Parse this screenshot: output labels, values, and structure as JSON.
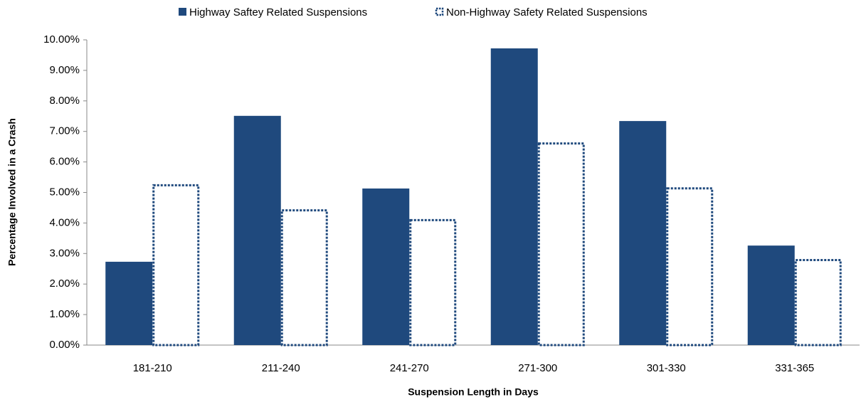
{
  "chart_data": {
    "type": "bar",
    "x_label": "Suspension Length in Days",
    "y_label": "Percentage Involved in a Crash",
    "categories": [
      "181-210",
      "211-240",
      "241-270",
      "271-300",
      "301-330",
      "331-365"
    ],
    "series": [
      {
        "name": "Highway Saftey Related Suspensions",
        "color": "#1f497d",
        "style": "solid",
        "values": [
          2.73,
          7.51,
          5.13,
          9.72,
          7.34,
          3.26
        ]
      },
      {
        "name": "Non-Highway Safety Related Suspensions",
        "color": "#1f497d",
        "style": "dotted",
        "values": [
          5.27,
          4.45,
          4.13,
          6.64,
          5.17,
          2.82
        ]
      }
    ],
    "ylim": [
      0,
      10
    ],
    "yticks": [
      {
        "value": 0,
        "label": "0.00%"
      },
      {
        "value": 1,
        "label": "1.00%"
      },
      {
        "value": 2,
        "label": "2.00%"
      },
      {
        "value": 3,
        "label": "3.00%"
      },
      {
        "value": 4,
        "label": "4.00%"
      },
      {
        "value": 5,
        "label": "5.00%"
      },
      {
        "value": 6,
        "label": "6.00%"
      },
      {
        "value": 7,
        "label": "7.00%"
      },
      {
        "value": 8,
        "label": "8.00%"
      },
      {
        "value": 9,
        "label": "9.00%"
      },
      {
        "value": 10,
        "label": "10.00%"
      }
    ],
    "legend": "top",
    "grid": false
  }
}
